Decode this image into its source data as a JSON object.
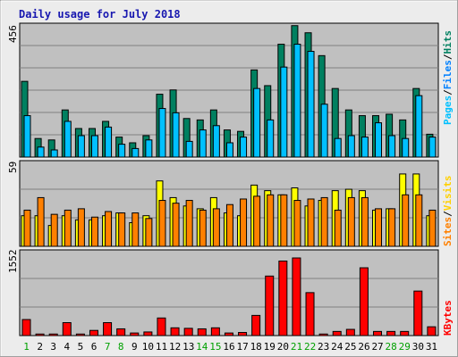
{
  "chart_data": [
    {
      "panel": "top",
      "type": "bar",
      "title": "Daily usage for July 2018",
      "y_label_left": "456",
      "right_labels": [
        "Pages",
        "/",
        "Files",
        "/",
        "Hits"
      ],
      "ylim": [
        0,
        456
      ],
      "categories": [
        "1",
        "2",
        "3",
        "4",
        "5",
        "6",
        "7",
        "8",
        "9",
        "10",
        "11",
        "12",
        "13",
        "14",
        "15",
        "16",
        "17",
        "18",
        "19",
        "20",
        "21",
        "22",
        "23",
        "24",
        "25",
        "26",
        "27",
        "28",
        "29",
        "30",
        "31"
      ],
      "series": [
        {
          "name": "Hits",
          "color": "#008060",
          "values": [
            265,
            65,
            60,
            165,
            100,
            100,
            125,
            70,
            50,
            75,
            220,
            235,
            135,
            130,
            165,
            95,
            90,
            305,
            250,
            395,
            460,
            435,
            355,
            240,
            165,
            145,
            145,
            150,
            130,
            240,
            80
          ]
        },
        {
          "name": "Files",
          "color": "#00c0ff",
          "values": [
            145,
            35,
            25,
            125,
            75,
            75,
            105,
            45,
            30,
            60,
            170,
            155,
            55,
            95,
            110,
            50,
            70,
            240,
            130,
            315,
            395,
            370,
            185,
            65,
            75,
            70,
            120,
            75,
            65,
            215,
            70
          ]
        },
        {
          "name": "Pages",
          "color": "#00c0ff",
          "values": [
            0,
            0,
            0,
            0,
            0,
            0,
            0,
            0,
            0,
            0,
            0,
            0,
            0,
            0,
            0,
            0,
            0,
            0,
            0,
            0,
            0,
            0,
            0,
            0,
            0,
            0,
            0,
            0,
            0,
            0,
            0
          ]
        }
      ]
    },
    {
      "panel": "middle",
      "type": "bar",
      "y_label_left": "59",
      "right_labels": [
        "Sites",
        "/",
        "Visits"
      ],
      "ylim": [
        0,
        59
      ],
      "categories": [
        "1",
        "2",
        "3",
        "4",
        "5",
        "6",
        "7",
        "8",
        "9",
        "10",
        "11",
        "12",
        "13",
        "14",
        "15",
        "16",
        "17",
        "18",
        "19",
        "20",
        "21",
        "22",
        "23",
        "24",
        "25",
        "26",
        "27",
        "28",
        "29",
        "30",
        "31"
      ],
      "series": [
        {
          "name": "Visits",
          "color": "#ffff00",
          "values": [
            22,
            22,
            15,
            22,
            19,
            19,
            22,
            24,
            17,
            22,
            47,
            35,
            29,
            27,
            35,
            24,
            22,
            44,
            40,
            37,
            42,
            29,
            33,
            40,
            41,
            40,
            26,
            27,
            52,
            52,
            22
          ]
        },
        {
          "name": "Sites",
          "color": "#ff8000",
          "values": [
            26,
            35,
            23,
            26,
            27,
            21,
            25,
            24,
            24,
            20,
            33,
            31,
            33,
            26,
            27,
            30,
            34,
            36,
            37,
            37,
            33,
            34,
            35,
            26,
            35,
            35,
            27,
            27,
            37,
            37,
            26
          ]
        }
      ]
    },
    {
      "panel": "bottom",
      "type": "bar",
      "y_label_left": "1552",
      "right_labels": [
        "KBytes"
      ],
      "ylim": [
        0,
        1552
      ],
      "categories": [
        "1",
        "2",
        "3",
        "4",
        "5",
        "6",
        "7",
        "8",
        "9",
        "10",
        "11",
        "12",
        "13",
        "14",
        "15",
        "16",
        "17",
        "18",
        "19",
        "20",
        "21",
        "22",
        "23",
        "24",
        "25",
        "26",
        "27",
        "28",
        "29",
        "30",
        "31"
      ],
      "weekend_days": [
        "1",
        "7",
        "8",
        "14",
        "15",
        "21",
        "22",
        "28",
        "29"
      ],
      "series": [
        {
          "name": "KBytes",
          "color": "#ff0000",
          "values": [
            310,
            30,
            30,
            250,
            30,
            100,
            250,
            130,
            50,
            70,
            340,
            150,
            140,
            130,
            150,
            50,
            60,
            390,
            1150,
            1440,
            1500,
            830,
            30,
            80,
            120,
            1310,
            80,
            80,
            80,
            860,
            170
          ]
        }
      ]
    }
  ]
}
